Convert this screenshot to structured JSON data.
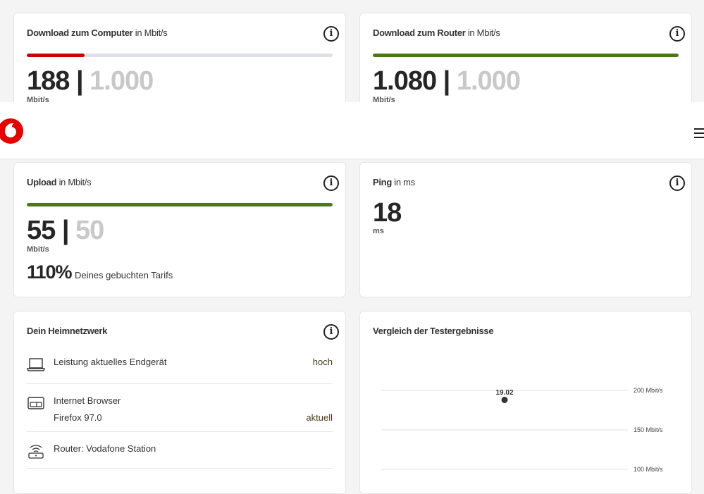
{
  "download_computer": {
    "title_bold": "Download zum Computer",
    "title_unit": "in Mbit/s",
    "value": "188",
    "max": "1.000",
    "unit": "Mbit/s",
    "progress": 0.188,
    "bar_color": "#cc0000"
  },
  "download_router": {
    "title_bold": "Download zum Router",
    "title_unit": "in Mbit/s",
    "value": "1.080",
    "max": "1.000",
    "unit": "Mbit/s",
    "progress": 1.0,
    "bar_color": "#4a7a11"
  },
  "upload": {
    "title_bold": "Upload",
    "title_unit": "in Mbit/s",
    "value": "55",
    "max": "50",
    "unit": "Mbit/s",
    "progress": 1.0,
    "bar_color": "#4a7a11",
    "percent": "110%",
    "percent_label": "Deines gebuchten Tarifs"
  },
  "ping": {
    "title_bold": "Ping",
    "title_unit": "in ms",
    "value": "18",
    "unit": "ms"
  },
  "separator": "|",
  "info_icon": "i",
  "home_network": {
    "title": "Dein Heimnetzwerk",
    "items": [
      {
        "icon": "laptop-icon",
        "label": "Leistung aktuelles Endgerät",
        "value": "hoch"
      },
      {
        "icon": "browser-icon",
        "label": "Internet Browser",
        "sublabel": "Firefox 97.0",
        "value": "aktuell"
      },
      {
        "icon": "router-icon",
        "label": "Router: Vodafone Station"
      }
    ]
  },
  "chart_data": {
    "type": "scatter",
    "title": "Vergleich der Testergebnisse",
    "x": [
      "19.02"
    ],
    "values": [
      188
    ],
    "y_ticks": [
      200,
      150,
      100
    ],
    "y_tick_labels": [
      "200 Mbit/s",
      "150 Mbit/s",
      "100 Mbit/s"
    ],
    "unit": "Mbit/s",
    "grid": true
  },
  "brand_color": "#e60000"
}
